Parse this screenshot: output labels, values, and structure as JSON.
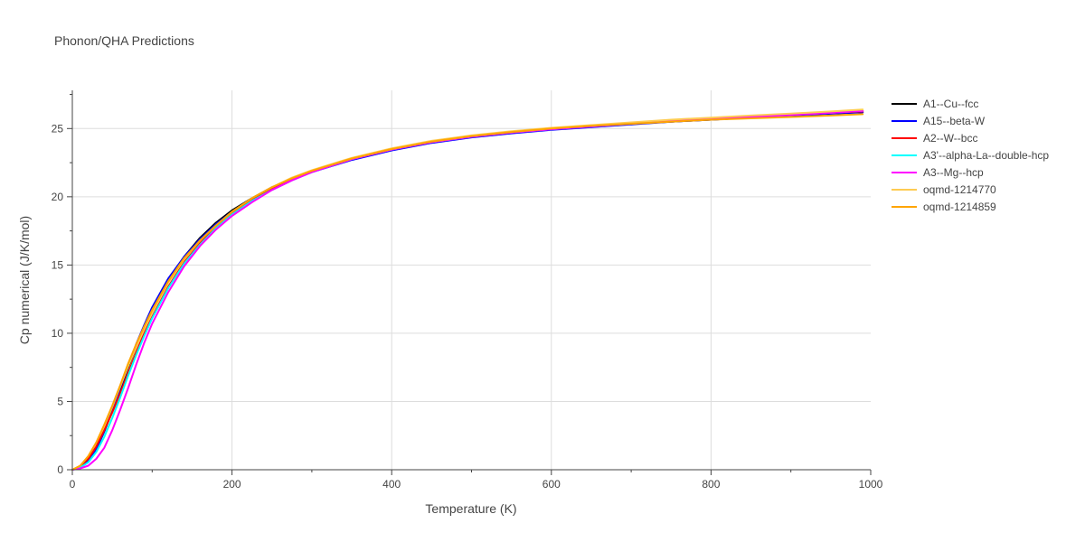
{
  "chart_data": {
    "type": "line",
    "title": "Phonon/QHA Predictions",
    "xlabel": "Temperature (K)",
    "ylabel": "Cp numerical (J/K/mol)",
    "xlim": [
      0,
      1000
    ],
    "ylim": [
      0,
      27.8
    ],
    "xticks": [
      0,
      200,
      400,
      600,
      800,
      1000
    ],
    "xtick_labels": [
      "0",
      "200",
      "400",
      "600",
      "800",
      "1000"
    ],
    "yticks": [
      0,
      5,
      10,
      15,
      20,
      25
    ],
    "ytick_labels": [
      "0",
      "5",
      "10",
      "15",
      "20",
      "25"
    ],
    "grid": true,
    "legend_position": "right",
    "x": [
      0,
      10,
      20,
      30,
      40,
      50,
      60,
      70,
      80,
      90,
      100,
      120,
      140,
      160,
      180,
      200,
      225,
      250,
      275,
      300,
      350,
      400,
      450,
      500,
      550,
      600,
      650,
      700,
      750,
      800,
      850,
      900,
      950,
      990
    ],
    "series": [
      {
        "name": "A1--Cu--fcc",
        "color": "#000000",
        "values": [
          0,
          0.2,
          0.7,
          1.5,
          2.8,
          4.3,
          5.9,
          7.5,
          9.0,
          10.4,
          11.7,
          13.9,
          15.6,
          17.0,
          18.1,
          19.0,
          19.9,
          20.7,
          21.3,
          21.9,
          22.8,
          23.5,
          24.0,
          24.4,
          24.7,
          24.95,
          25.15,
          25.35,
          25.5,
          25.65,
          25.8,
          25.95,
          26.1,
          26.2
        ]
      },
      {
        "name": "A15--beta-W",
        "color": "#0000ff",
        "values": [
          0,
          0.2,
          0.7,
          1.5,
          2.8,
          4.4,
          6.0,
          7.6,
          9.2,
          10.6,
          11.9,
          14.0,
          15.6,
          16.9,
          18.0,
          18.9,
          19.85,
          20.6,
          21.25,
          21.8,
          22.7,
          23.4,
          23.95,
          24.35,
          24.65,
          24.9,
          25.1,
          25.3,
          25.5,
          25.65,
          25.8,
          25.95,
          26.1,
          26.2
        ]
      },
      {
        "name": "A2--W--bcc",
        "color": "#ff0000",
        "values": [
          0,
          0.25,
          0.8,
          1.7,
          2.9,
          4.2,
          5.6,
          7.1,
          8.6,
          10.0,
          11.2,
          13.4,
          15.2,
          16.6,
          17.8,
          18.8,
          19.8,
          20.6,
          21.3,
          21.85,
          22.8,
          23.5,
          24.05,
          24.45,
          24.75,
          25.0,
          25.2,
          25.4,
          25.55,
          25.7,
          25.85,
          26.0,
          26.15,
          26.25
        ]
      },
      {
        "name": "A3'--alpha-La--double-hcp",
        "color": "#00ffff",
        "values": [
          0,
          0.15,
          0.55,
          1.3,
          2.4,
          3.8,
          5.3,
          6.9,
          8.4,
          9.8,
          11.1,
          13.3,
          15.1,
          16.5,
          17.7,
          18.7,
          19.7,
          20.5,
          21.2,
          21.8,
          22.75,
          23.45,
          24.0,
          24.4,
          24.7,
          24.95,
          25.15,
          25.35,
          25.55,
          25.7,
          25.85,
          26.0,
          26.15,
          26.3
        ]
      },
      {
        "name": "A3--Mg--hcp",
        "color": "#ff00ff",
        "values": [
          0,
          0.1,
          0.3,
          0.8,
          1.6,
          2.9,
          4.4,
          6.0,
          7.7,
          9.3,
          10.7,
          13.0,
          14.9,
          16.4,
          17.6,
          18.6,
          19.6,
          20.5,
          21.2,
          21.8,
          22.75,
          23.45,
          24.0,
          24.4,
          24.7,
          24.95,
          25.15,
          25.35,
          25.55,
          25.7,
          25.85,
          26.0,
          26.15,
          26.3
        ]
      },
      {
        "name": "oqmd-1214770",
        "color": "#fecb52",
        "values": [
          0,
          0.3,
          1.0,
          2.0,
          3.2,
          4.6,
          6.1,
          7.6,
          9.0,
          10.3,
          11.5,
          13.7,
          15.4,
          16.8,
          17.9,
          18.9,
          19.9,
          20.7,
          21.4,
          21.95,
          22.85,
          23.55,
          24.1,
          24.5,
          24.8,
          25.05,
          25.25,
          25.45,
          25.65,
          25.8,
          25.95,
          26.1,
          26.25,
          26.4
        ]
      },
      {
        "name": "oqmd-1214859",
        "color": "#ffa500",
        "values": [
          0,
          0.3,
          1.0,
          2.0,
          3.3,
          4.7,
          6.2,
          7.8,
          9.2,
          10.5,
          11.7,
          13.8,
          15.5,
          16.8,
          17.9,
          18.9,
          19.9,
          20.7,
          21.35,
          21.9,
          22.8,
          23.5,
          24.05,
          24.45,
          24.75,
          25.0,
          25.2,
          25.35,
          25.5,
          25.65,
          25.75,
          25.85,
          25.95,
          26.05
        ]
      }
    ]
  }
}
